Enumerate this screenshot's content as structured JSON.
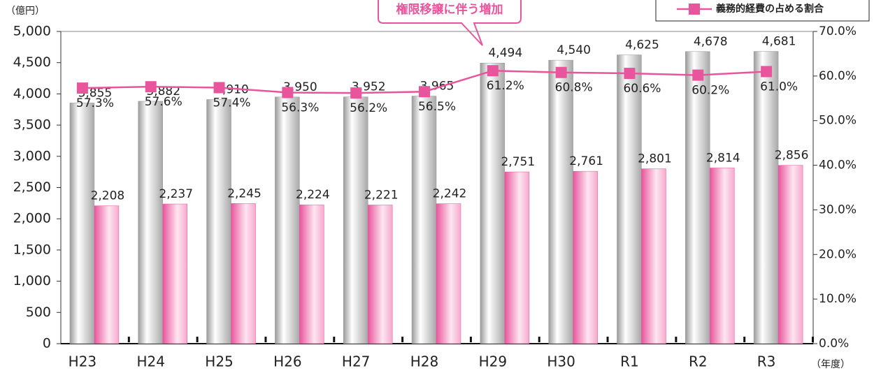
{
  "chart_data": {
    "type": "bar",
    "y_unit": "（億円）",
    "x_unit": "（年度）",
    "annotation": "権限移譲に伴う増加",
    "categories": [
      "H23",
      "H24",
      "H25",
      "H26",
      "H27",
      "H28",
      "H29",
      "H30",
      "R1",
      "R2",
      "R3"
    ],
    "series": [
      {
        "type": "bar",
        "color": "#b5b5b5",
        "values": [
          3855,
          3882,
          3910,
          3950,
          3952,
          3965,
          4494,
          4540,
          4625,
          4678,
          4681
        ],
        "value_labels": [
          "3,855",
          "3,882",
          "3,910",
          "3,950",
          "3,952",
          "3,965",
          "4,494",
          "4,540",
          "4,625",
          "4,678",
          "4,681"
        ]
      },
      {
        "type": "bar",
        "color": "#e8559c",
        "values": [
          2208,
          2237,
          2245,
          2224,
          2221,
          2242,
          2751,
          2761,
          2801,
          2814,
          2856
        ],
        "value_labels": [
          "2,208",
          "2,237",
          "2,245",
          "2,224",
          "2,221",
          "2,242",
          "2,751",
          "2,761",
          "2,801",
          "2,814",
          "2,856"
        ]
      },
      {
        "type": "line",
        "name": "義務的経費の占める割合",
        "color": "#e8559c",
        "axis": "y2",
        "values": [
          57.3,
          57.6,
          57.4,
          56.3,
          56.2,
          56.5,
          61.2,
          60.8,
          60.6,
          60.2,
          61.0
        ],
        "value_labels": [
          "57.3%",
          "57.6%",
          "57.4%",
          "56.3%",
          "56.2%",
          "56.5%",
          "61.2%",
          "60.8%",
          "60.6%",
          "60.2%",
          "61.0%"
        ]
      }
    ],
    "ylim": [
      0,
      5000
    ],
    "yticks": [
      0,
      500,
      {
        "value": 1000,
        "label": "1,000"
      },
      {
        "value": 1500,
        "label": "1,500"
      },
      {
        "value": 2000,
        "label": "2,000"
      },
      {
        "value": 2500,
        "label": "2,500"
      },
      {
        "value": 3000,
        "label": "3,000"
      },
      {
        "value": 3500,
        "label": "3,500"
      },
      {
        "value": 4000,
        "label": "4,000"
      },
      {
        "value": 4500,
        "label": "4,500"
      },
      {
        "value": 5000,
        "label": "5,000"
      }
    ],
    "y2lim": [
      0,
      70
    ],
    "y2ticks": [
      {
        "value": 0,
        "label": "0.0%"
      },
      {
        "value": 10,
        "label": "10.0%"
      },
      {
        "value": 20,
        "label": "20.0%"
      },
      {
        "value": 30,
        "label": "30.0%"
      },
      {
        "value": 40,
        "label": "40.0%"
      },
      {
        "value": 50,
        "label": "50.0%"
      },
      {
        "value": 60,
        "label": "60.0%"
      },
      {
        "value": 70,
        "label": "70.0%"
      }
    ],
    "grid": false,
    "legend": "top-right"
  }
}
